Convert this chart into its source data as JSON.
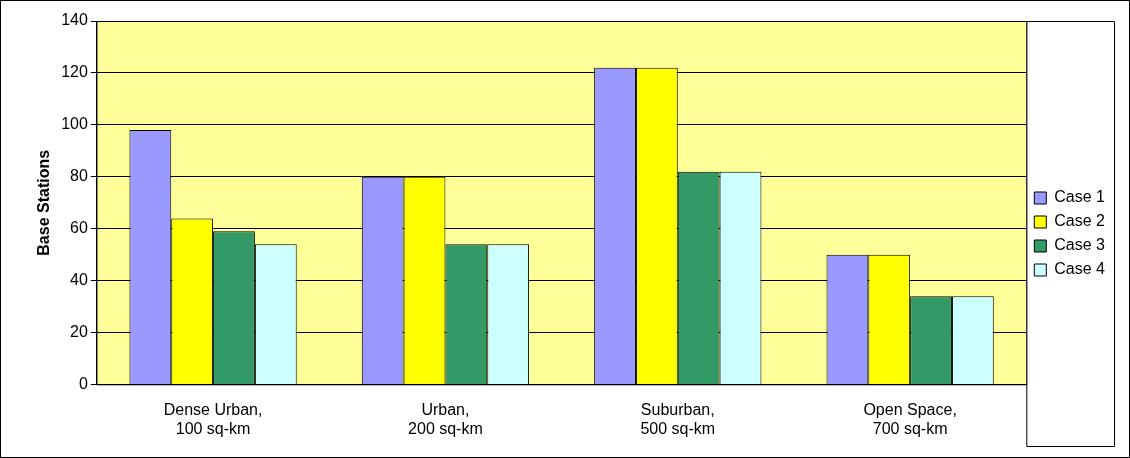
{
  "chart_data": {
    "type": "bar",
    "ylabel": "Base Stations",
    "categories": [
      "Dense Urban, 100 sq-km",
      "Urban, 200 sq-km",
      "Suburban, 500 sq-km",
      "Open Space, 700 sq-km"
    ],
    "series": [
      {
        "name": "Case 1",
        "color": "#9999ff",
        "values": [
          98,
          80,
          122,
          50
        ]
      },
      {
        "name": "Case 2",
        "color": "#ffff00",
        "values": [
          64,
          80,
          122,
          50
        ]
      },
      {
        "name": "Case 3",
        "color": "#339966",
        "values": [
          59,
          54,
          82,
          34
        ]
      },
      {
        "name": "Case 4",
        "color": "#ccffff",
        "values": [
          54,
          54,
          82,
          34
        ]
      }
    ],
    "ylim": [
      0,
      140
    ],
    "yticks": [
      0,
      20,
      40,
      60,
      80,
      100,
      120,
      140
    ],
    "grid": "y",
    "legend": "right"
  }
}
